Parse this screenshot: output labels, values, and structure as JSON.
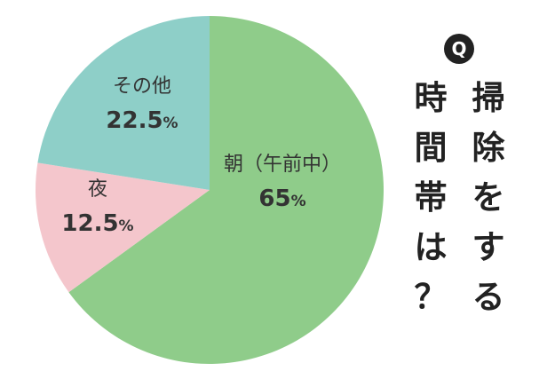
{
  "question_badge": "Q",
  "question_columns": [
    [
      "掃",
      "除",
      "を",
      "す",
      "る"
    ],
    [
      "時",
      "間",
      "帯",
      "は",
      "？"
    ]
  ],
  "colors": {
    "morning": "#8fcc8a",
    "night": "#f4c6cc",
    "other": "#8ecfc8",
    "text": "#333333",
    "badge": "#222222"
  },
  "chart_data": {
    "type": "pie",
    "title": "掃除をする時間帯は？",
    "start_angle_deg": 0,
    "direction": "clockwise",
    "slices": [
      {
        "label": "朝（午前中）",
        "value": 65,
        "value_text": "65",
        "unit": "%",
        "color": "#8fcc8a"
      },
      {
        "label": "夜",
        "value": 12.5,
        "value_text": "12.5",
        "unit": "%",
        "color": "#f4c6cc"
      },
      {
        "label": "その他",
        "value": 22.5,
        "value_text": "22.5",
        "unit": "%",
        "color": "#8ecfc8"
      }
    ]
  }
}
